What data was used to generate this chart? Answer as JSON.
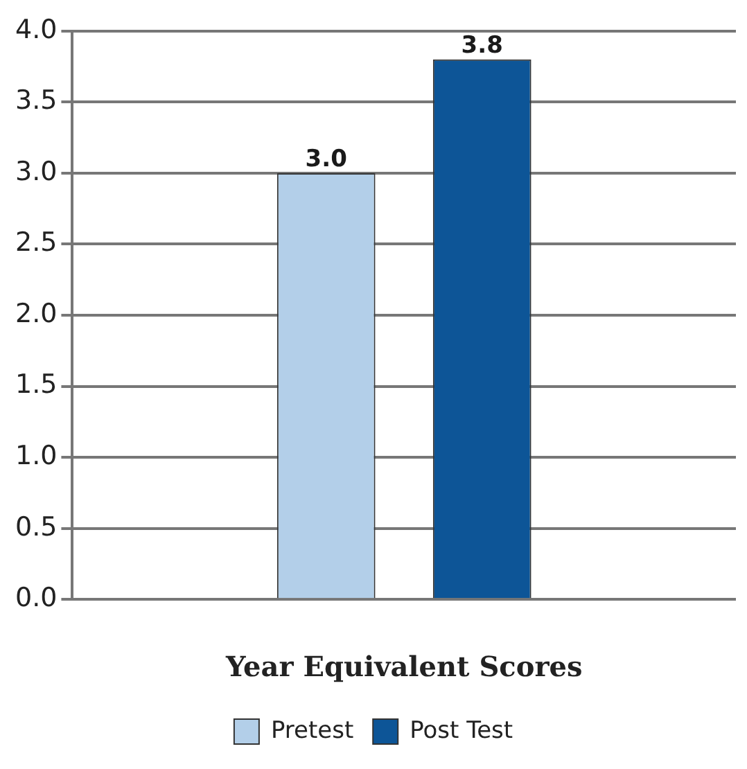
{
  "chart_data": {
    "type": "bar",
    "xlabel": "Year Equivalent Scores",
    "categories": [
      null
    ],
    "series": [
      {
        "name": "Pretest",
        "color": "#b3cfe9",
        "values": [
          3.0
        ],
        "value_labels": [
          "3.0"
        ]
      },
      {
        "name": "Post Test",
        "color": "#0d5597",
        "values": [
          3.8
        ],
        "value_labels": [
          "3.8"
        ]
      }
    ],
    "ylim": [
      0,
      4
    ],
    "yticks": [
      {
        "value": 0,
        "label": "0.0"
      },
      {
        "value": 0.5,
        "label": "0.5"
      },
      {
        "value": 1,
        "label": "1.0"
      },
      {
        "value": 1.5,
        "label": "1.5"
      },
      {
        "value": 2,
        "label": "2.0"
      },
      {
        "value": 2.5,
        "label": "2.5"
      },
      {
        "value": 3,
        "label": "3.0"
      },
      {
        "value": 3.5,
        "label": "3.5"
      },
      {
        "value": 4,
        "label": "4.0"
      }
    ],
    "grid": "y",
    "legend": "bottom"
  }
}
